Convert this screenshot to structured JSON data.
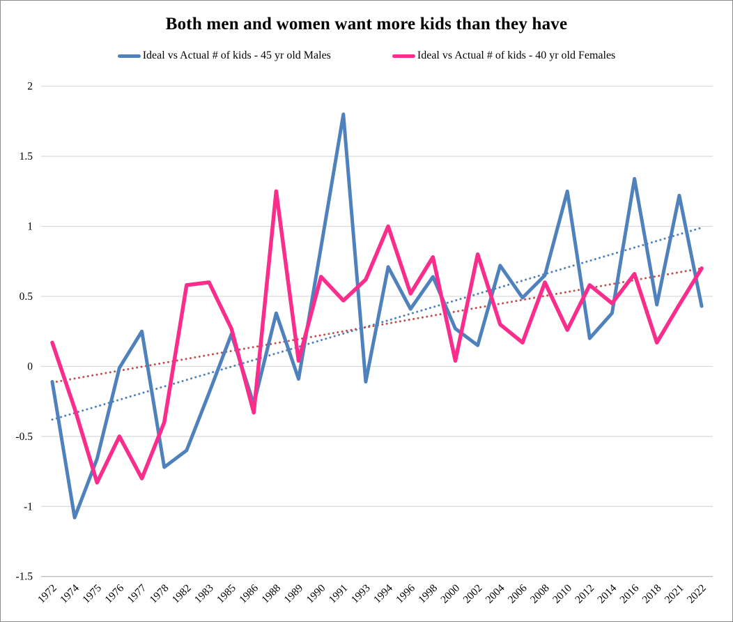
{
  "title": "Both men and women want more kids than they have",
  "legend": [
    {
      "label": "Ideal vs Actual # of kids - 45 yr old Males",
      "color": "#4F81BD"
    },
    {
      "label": "Ideal vs Actual # of kids - 40 yr old Females",
      "color": "#FA2D8C"
    }
  ],
  "chart_data": {
    "type": "line",
    "title": "Both men and women want more kids than they have",
    "categories": [
      "1972",
      "1974",
      "1975",
      "1976",
      "1977",
      "1978",
      "1982",
      "1983",
      "1985",
      "1986",
      "1988",
      "1989",
      "1990",
      "1991",
      "1993",
      "1994",
      "1996",
      "1998",
      "2000",
      "2002",
      "2004",
      "2006",
      "2008",
      "2010",
      "2012",
      "2014",
      "2016",
      "2018",
      "2021",
      "2022"
    ],
    "series": [
      {
        "name": "Ideal vs Actual # of kids - 45 yr old Males",
        "color": "#4F81BD",
        "line_width": 5,
        "values": [
          -0.11,
          -1.08,
          -0.66,
          -0.01,
          0.25,
          -0.72,
          -0.6,
          -0.19,
          0.23,
          -0.27,
          0.38,
          -0.09,
          0.85,
          1.8,
          -0.11,
          0.71,
          0.41,
          0.64,
          0.27,
          0.15,
          0.72,
          0.49,
          0.65,
          1.25,
          0.2,
          0.38,
          1.34,
          0.44,
          1.22,
          0.43
        ]
      },
      {
        "name": "Ideal vs Actual # of kids - 40 yr old Females",
        "color": "#FA2D8C",
        "line_width": 5.5,
        "values": [
          0.17,
          -0.3,
          -0.83,
          -0.5,
          -0.8,
          -0.4,
          0.58,
          0.6,
          0.27,
          -0.33,
          1.25,
          0.04,
          0.64,
          0.47,
          0.62,
          1.0,
          0.52,
          0.78,
          0.04,
          0.8,
          0.3,
          0.17,
          0.6,
          0.26,
          0.58,
          0.45,
          0.66,
          0.17,
          0.44,
          0.7
        ]
      }
    ],
    "trendlines": [
      {
        "for_series": "Ideal vs Actual # of kids - 45 yr old Males",
        "color": "#4F81BD",
        "style": "dotted",
        "start_value": -0.38,
        "end_value": 0.99
      },
      {
        "for_series": "Ideal vs Actual # of kids - 40 yr old Females",
        "color": "#C0504D",
        "style": "dotted",
        "start_value": -0.115,
        "end_value": 0.7
      }
    ],
    "y_ticks": [
      "2",
      "1.5",
      "1",
      "0.5",
      "0",
      "-0.5",
      "-1",
      "-1.5"
    ],
    "ylim": [
      -1.5,
      2
    ],
    "xlabel": "",
    "ylabel": "",
    "grid": true,
    "gridline_color": "#D9D9D9",
    "axis_line_color": "#BFBFBF",
    "legend_position": "top",
    "x_label_rotation_deg": -45
  }
}
